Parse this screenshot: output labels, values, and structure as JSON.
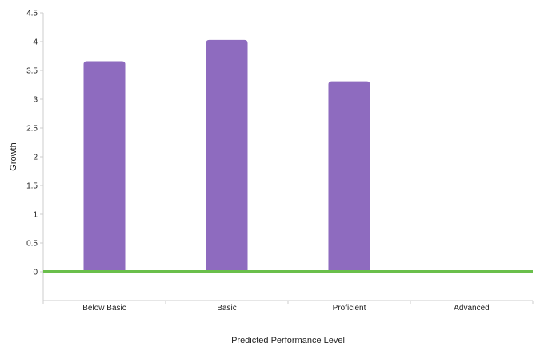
{
  "chart_data": {
    "type": "bar",
    "categories": [
      "Below Basic",
      "Basic",
      "Proficient",
      "Advanced"
    ],
    "values": [
      3.66,
      4.03,
      3.31,
      null
    ],
    "xlabel": "Predicted Performance Level",
    "ylabel": "Growth",
    "ylim": [
      -0.5,
      4.5
    ],
    "yticks": [
      "0",
      "0.5",
      "1",
      "1.5",
      "2",
      "2.5",
      "3",
      "3.5",
      "4",
      "4.5"
    ],
    "reference_line": 0,
    "grid": false,
    "colors": {
      "bar": "#8e6bbf",
      "reference_line": "#6abf4b",
      "axis": "#cccccc"
    }
  }
}
